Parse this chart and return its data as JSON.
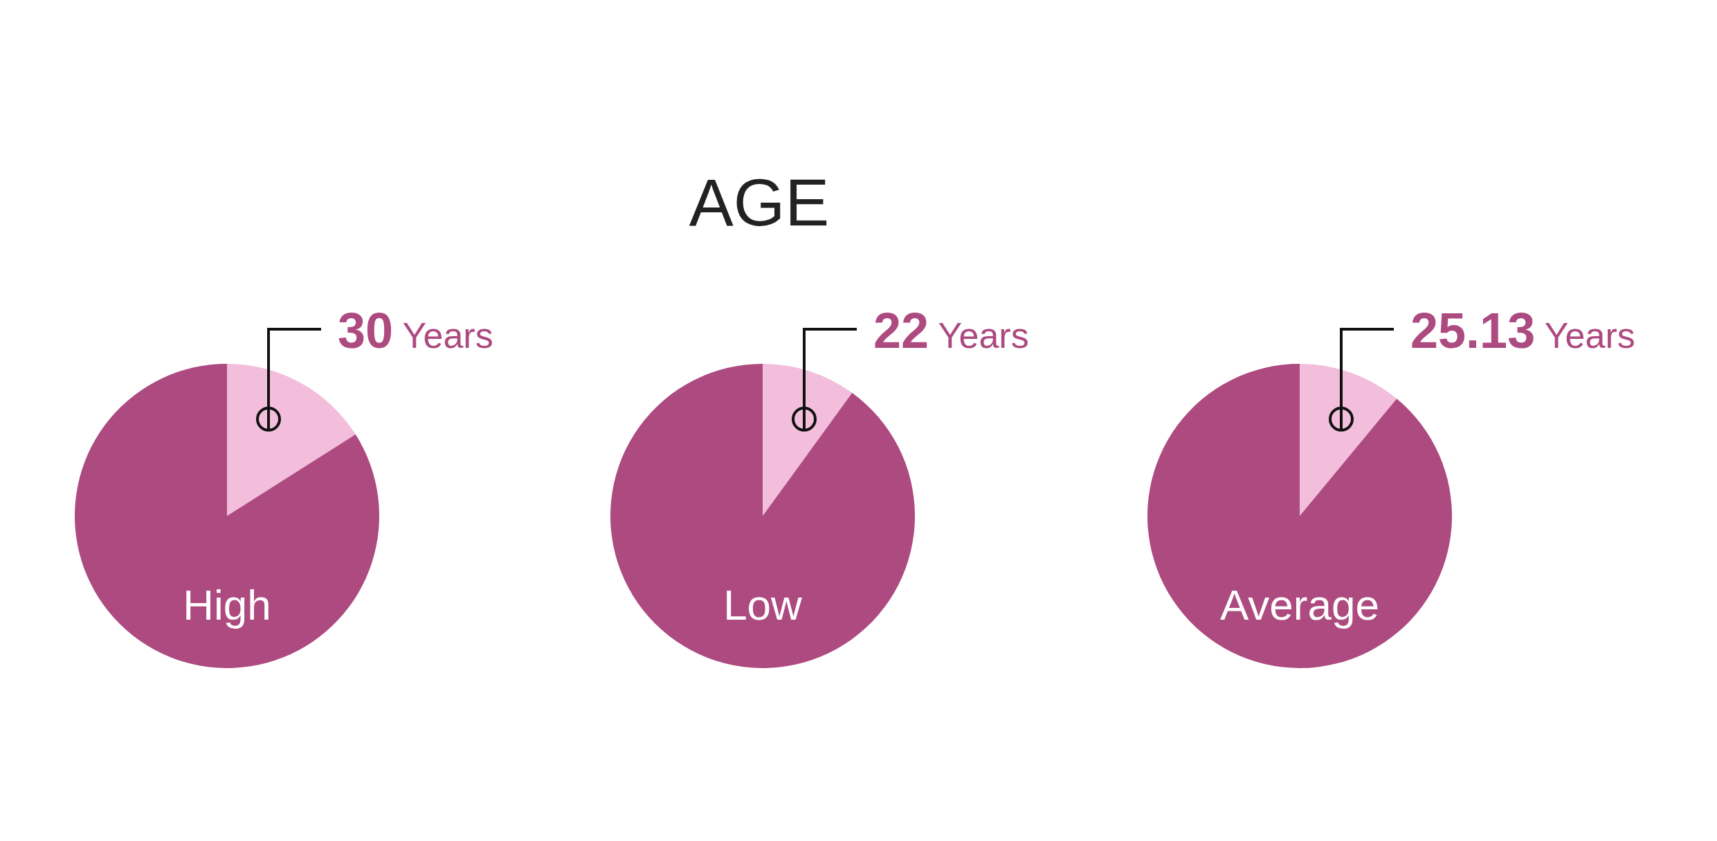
{
  "chart_data": [
    {
      "type": "pie",
      "categories": [
        null,
        "High"
      ],
      "values": [
        16,
        84
      ],
      "colors": [
        "#f2bedb",
        "#ad4a80"
      ],
      "annotations": [
        "30 Years"
      ],
      "legend": false
    },
    {
      "type": "pie",
      "title": "AGE",
      "categories": [
        null,
        "Low"
      ],
      "values": [
        10,
        90
      ],
      "colors": [
        "#f2bedb",
        "#ad4a80"
      ],
      "annotations": [
        "22 Years"
      ],
      "legend": false
    },
    {
      "type": "pie",
      "categories": [
        null,
        "Average"
      ],
      "values": [
        11,
        89
      ],
      "colors": [
        "#f2bedb",
        "#ad4a80"
      ],
      "annotations": [
        "25.13 Years"
      ],
      "legend": false
    }
  ]
}
